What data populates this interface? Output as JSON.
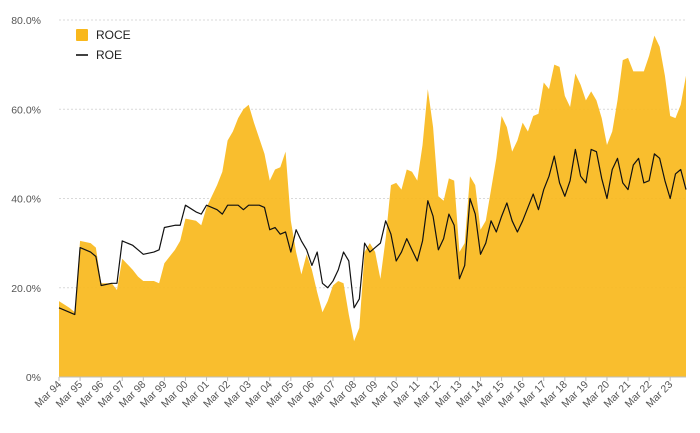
{
  "chart_data": {
    "type": "area",
    "title": "",
    "xlabel": "",
    "ylabel": "",
    "ylim": [
      0,
      80
    ],
    "yticks": [
      "0%",
      "20.0%",
      "40.0%",
      "60.0%",
      "80.0%"
    ],
    "x_tick_labels": [
      "Mar 94",
      "Mar 95",
      "Mar 96",
      "Mar 97",
      "Mar 98",
      "Mar 99",
      "Mar 00",
      "Mar 01",
      "Mar 02",
      "Mar 03",
      "Mar 04",
      "Mar 05",
      "Mar 06",
      "Mar 07",
      "Mar 08",
      "Mar 09",
      "Mar 10",
      "Mar 11",
      "Mar 12",
      "Mar 13",
      "Mar 14",
      "Mar 15",
      "Mar 16",
      "Mar 17",
      "Mar 18",
      "Mar 19",
      "Mar 20",
      "Mar 21",
      "Mar 22",
      "Mar 23"
    ],
    "x_range": [
      1994.0,
      2023.75
    ],
    "grid": "horizontal dashed",
    "legend_position": "top-left",
    "colors": {
      "roce": "#f9b81c",
      "roe": "#111111",
      "grid": "#d9d9d9",
      "axis": "#555555"
    },
    "series": [
      {
        "name": "ROCE",
        "style": "area",
        "points": [
          [
            1994.0,
            17
          ],
          [
            1994.5,
            15.5
          ],
          [
            1994.75,
            14.5
          ],
          [
            1995.0,
            30.5
          ],
          [
            1995.5,
            30
          ],
          [
            1995.75,
            29
          ],
          [
            1996.0,
            21
          ],
          [
            1996.5,
            21
          ],
          [
            1996.75,
            19.5
          ],
          [
            1997.0,
            26.5
          ],
          [
            1997.5,
            24
          ],
          [
            1997.75,
            22.5
          ],
          [
            1998.0,
            21.5
          ],
          [
            1998.5,
            21.5
          ],
          [
            1998.75,
            21
          ],
          [
            1999.0,
            25.5
          ],
          [
            1999.5,
            28.5
          ],
          [
            1999.75,
            30.5
          ],
          [
            2000.0,
            35.5
          ],
          [
            2000.5,
            35
          ],
          [
            2000.75,
            34
          ],
          [
            2001.0,
            38
          ],
          [
            2001.5,
            43
          ],
          [
            2001.75,
            46
          ],
          [
            2002.0,
            53
          ],
          [
            2002.25,
            55
          ],
          [
            2002.5,
            58
          ],
          [
            2002.75,
            60
          ],
          [
            2003.0,
            61
          ],
          [
            2003.25,
            57
          ],
          [
            2003.5,
            53.5
          ],
          [
            2003.75,
            50
          ],
          [
            2004.0,
            44
          ],
          [
            2004.25,
            46.5
          ],
          [
            2004.5,
            47
          ],
          [
            2004.75,
            50.5
          ],
          [
            2005.0,
            35
          ],
          [
            2005.25,
            28
          ],
          [
            2005.5,
            23
          ],
          [
            2005.75,
            27.5
          ],
          [
            2006.0,
            24
          ],
          [
            2006.25,
            19
          ],
          [
            2006.5,
            14.5
          ],
          [
            2006.75,
            17
          ],
          [
            2007.0,
            20.5
          ],
          [
            2007.25,
            21.5
          ],
          [
            2007.5,
            21
          ],
          [
            2007.75,
            14
          ],
          [
            2008.0,
            8
          ],
          [
            2008.25,
            11
          ],
          [
            2008.5,
            28
          ],
          [
            2008.75,
            30
          ],
          [
            2009.0,
            28
          ],
          [
            2009.25,
            22
          ],
          [
            2009.5,
            31
          ],
          [
            2009.75,
            43
          ],
          [
            2010.0,
            43.5
          ],
          [
            2010.25,
            42
          ],
          [
            2010.5,
            46.5
          ],
          [
            2010.75,
            46
          ],
          [
            2011.0,
            44
          ],
          [
            2011.25,
            52
          ],
          [
            2011.5,
            64.5
          ],
          [
            2011.75,
            56
          ],
          [
            2012.0,
            40.5
          ],
          [
            2012.25,
            39.5
          ],
          [
            2012.5,
            44.5
          ],
          [
            2012.75,
            44
          ],
          [
            2013.0,
            28
          ],
          [
            2013.25,
            30
          ],
          [
            2013.5,
            45
          ],
          [
            2013.75,
            43
          ],
          [
            2014.0,
            33
          ],
          [
            2014.25,
            35
          ],
          [
            2014.5,
            42
          ],
          [
            2014.75,
            49
          ],
          [
            2015.0,
            58.5
          ],
          [
            2015.25,
            56
          ],
          [
            2015.5,
            50.5
          ],
          [
            2015.75,
            53
          ],
          [
            2016.0,
            57
          ],
          [
            2016.25,
            55
          ],
          [
            2016.5,
            58.5
          ],
          [
            2016.75,
            59
          ],
          [
            2017.0,
            66
          ],
          [
            2017.25,
            64.5
          ],
          [
            2017.5,
            70
          ],
          [
            2017.75,
            69.5
          ],
          [
            2018.0,
            63
          ],
          [
            2018.25,
            60.5
          ],
          [
            2018.5,
            68
          ],
          [
            2018.75,
            65.5
          ],
          [
            2019.0,
            62
          ],
          [
            2019.25,
            64
          ],
          [
            2019.5,
            62
          ],
          [
            2019.75,
            58
          ],
          [
            2020.0,
            52
          ],
          [
            2020.25,
            55
          ],
          [
            2020.5,
            62
          ],
          [
            2020.75,
            71
          ],
          [
            2021.0,
            71.5
          ],
          [
            2021.25,
            68.5
          ],
          [
            2021.5,
            68.5
          ],
          [
            2021.75,
            68.5
          ],
          [
            2022.0,
            72
          ],
          [
            2022.25,
            76.5
          ],
          [
            2022.5,
            74
          ],
          [
            2022.75,
            67.5
          ],
          [
            2023.0,
            58.5
          ],
          [
            2023.25,
            58
          ],
          [
            2023.5,
            61
          ],
          [
            2023.75,
            67.5
          ]
        ]
      },
      {
        "name": "ROE",
        "style": "line",
        "points": [
          [
            1994.0,
            15.5
          ],
          [
            1994.5,
            14.5
          ],
          [
            1994.75,
            14
          ],
          [
            1995.0,
            29
          ],
          [
            1995.5,
            28
          ],
          [
            1995.75,
            27
          ],
          [
            1996.0,
            20.5
          ],
          [
            1996.5,
            21
          ],
          [
            1996.75,
            21
          ],
          [
            1997.0,
            30.5
          ],
          [
            1997.5,
            29.5
          ],
          [
            1997.75,
            28.5
          ],
          [
            1998.0,
            27.5
          ],
          [
            1998.5,
            28
          ],
          [
            1998.75,
            28.5
          ],
          [
            1999.0,
            33.5
          ],
          [
            1999.5,
            34
          ],
          [
            1999.75,
            34
          ],
          [
            2000.0,
            38.5
          ],
          [
            2000.5,
            37
          ],
          [
            2000.75,
            36.5
          ],
          [
            2001.0,
            38.5
          ],
          [
            2001.5,
            37.5
          ],
          [
            2001.75,
            36.5
          ],
          [
            2002.0,
            38.5
          ],
          [
            2002.5,
            38.5
          ],
          [
            2002.75,
            37.5
          ],
          [
            2003.0,
            38.5
          ],
          [
            2003.5,
            38.5
          ],
          [
            2003.75,
            38
          ],
          [
            2004.0,
            33
          ],
          [
            2004.25,
            33.5
          ],
          [
            2004.5,
            32
          ],
          [
            2004.75,
            32.5
          ],
          [
            2005.0,
            28
          ],
          [
            2005.25,
            33
          ],
          [
            2005.5,
            30.5
          ],
          [
            2005.75,
            28.5
          ],
          [
            2006.0,
            25
          ],
          [
            2006.25,
            28
          ],
          [
            2006.5,
            21
          ],
          [
            2006.75,
            20
          ],
          [
            2007.0,
            21.5
          ],
          [
            2007.25,
            24
          ],
          [
            2007.5,
            28
          ],
          [
            2007.75,
            26
          ],
          [
            2008.0,
            15.5
          ],
          [
            2008.25,
            17.5
          ],
          [
            2008.5,
            30
          ],
          [
            2008.75,
            28
          ],
          [
            2009.0,
            29
          ],
          [
            2009.25,
            30
          ],
          [
            2009.5,
            35
          ],
          [
            2009.75,
            32
          ],
          [
            2010.0,
            26
          ],
          [
            2010.25,
            28
          ],
          [
            2010.5,
            31
          ],
          [
            2010.75,
            28.5
          ],
          [
            2011.0,
            26
          ],
          [
            2011.25,
            30.5
          ],
          [
            2011.5,
            39.5
          ],
          [
            2011.75,
            36
          ],
          [
            2012.0,
            28.5
          ],
          [
            2012.25,
            31
          ],
          [
            2012.5,
            36.5
          ],
          [
            2012.75,
            34
          ],
          [
            2013.0,
            22
          ],
          [
            2013.25,
            25
          ],
          [
            2013.5,
            40
          ],
          [
            2013.75,
            36.5
          ],
          [
            2014.0,
            27.5
          ],
          [
            2014.25,
            30
          ],
          [
            2014.5,
            35
          ],
          [
            2014.75,
            32.5
          ],
          [
            2015.0,
            36
          ],
          [
            2015.25,
            39
          ],
          [
            2015.5,
            35
          ],
          [
            2015.75,
            32.5
          ],
          [
            2016.0,
            35
          ],
          [
            2016.25,
            38
          ],
          [
            2016.5,
            41
          ],
          [
            2016.75,
            37.5
          ],
          [
            2017.0,
            42
          ],
          [
            2017.25,
            45
          ],
          [
            2017.5,
            49.5
          ],
          [
            2017.75,
            43.5
          ],
          [
            2018.0,
            40.5
          ],
          [
            2018.25,
            44
          ],
          [
            2018.5,
            51
          ],
          [
            2018.75,
            45
          ],
          [
            2019.0,
            43.5
          ],
          [
            2019.25,
            51
          ],
          [
            2019.5,
            50.5
          ],
          [
            2019.75,
            44.5
          ],
          [
            2020.0,
            40
          ],
          [
            2020.25,
            46.5
          ],
          [
            2020.5,
            49
          ],
          [
            2020.75,
            43.5
          ],
          [
            2021.0,
            42
          ],
          [
            2021.25,
            47.5
          ],
          [
            2021.5,
            49
          ],
          [
            2021.75,
            43.5
          ],
          [
            2022.0,
            44
          ],
          [
            2022.25,
            50
          ],
          [
            2022.5,
            49
          ],
          [
            2022.75,
            44
          ],
          [
            2023.0,
            40
          ],
          [
            2023.25,
            45.5
          ],
          [
            2023.5,
            46.5
          ],
          [
            2023.75,
            42
          ]
        ]
      }
    ]
  }
}
